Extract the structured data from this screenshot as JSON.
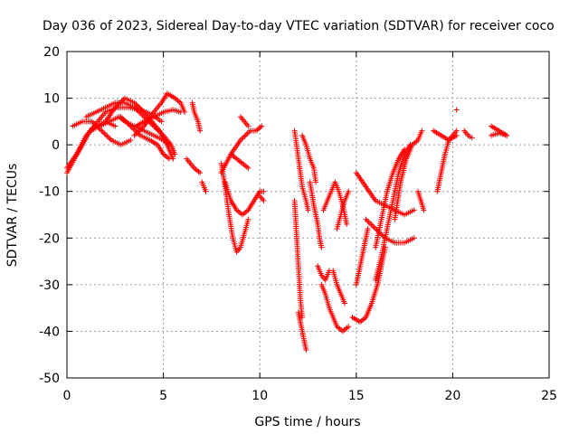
{
  "chart_data": {
    "type": "scatter",
    "title": "Day 036 of 2023, Sidereal Day-to-day VTEC variation (SDTVAR) for receiver coco",
    "xlabel": "GPS time / hours",
    "ylabel": "SDTVAR / TECUs",
    "xlim": [
      0,
      25
    ],
    "ylim": [
      -50,
      20
    ],
    "xticks": [
      0,
      5,
      10,
      15,
      20,
      25
    ],
    "yticks": [
      20,
      10,
      0,
      -10,
      -20,
      -30,
      -40,
      -50
    ],
    "grid": true,
    "marker": "+",
    "series_color": "#ff0000",
    "arcs": [
      {
        "name": "arc-1",
        "points": [
          [
            0.0,
            -5
          ],
          [
            0.5,
            -2
          ],
          [
            1.0,
            2
          ],
          [
            1.5,
            4
          ],
          [
            2.0,
            5
          ],
          [
            2.5,
            4
          ]
        ]
      },
      {
        "name": "arc-2",
        "points": [
          [
            0.0,
            -6
          ],
          [
            0.4,
            -3
          ],
          [
            0.8,
            0
          ],
          [
            1.2,
            3
          ],
          [
            1.6,
            5
          ],
          [
            2.0,
            7
          ],
          [
            2.6,
            8
          ],
          [
            3.2,
            8
          ],
          [
            3.8,
            7.5
          ],
          [
            4.4,
            6.5
          ],
          [
            4.9,
            5
          ]
        ]
      },
      {
        "name": "arc-3",
        "points": [
          [
            0.3,
            4
          ],
          [
            0.8,
            5
          ],
          [
            1.3,
            5
          ],
          [
            1.8,
            3
          ],
          [
            2.3,
            1
          ],
          [
            2.8,
            0
          ],
          [
            3.3,
            1
          ]
        ]
      },
      {
        "name": "arc-4",
        "points": [
          [
            1.0,
            6
          ],
          [
            1.5,
            7
          ],
          [
            2.0,
            8
          ],
          [
            2.5,
            9
          ],
          [
            3.0,
            9
          ],
          [
            3.5,
            8
          ],
          [
            4.0,
            6
          ],
          [
            4.5,
            4
          ],
          [
            5.0,
            2
          ],
          [
            5.4,
            0
          ],
          [
            5.6,
            -2
          ]
        ]
      },
      {
        "name": "arc-5",
        "points": [
          [
            1.2,
            3
          ],
          [
            1.7,
            4
          ],
          [
            2.2,
            5
          ],
          [
            2.7,
            6
          ],
          [
            3.0,
            5
          ],
          [
            3.5,
            4
          ],
          [
            4.0,
            3
          ],
          [
            4.5,
            2
          ],
          [
            5.0,
            1
          ],
          [
            5.3,
            0
          ]
        ]
      },
      {
        "name": "arc-6",
        "points": [
          [
            2.0,
            5
          ],
          [
            2.5,
            8
          ],
          [
            3.0,
            10
          ],
          [
            3.5,
            9
          ],
          [
            4.0,
            7
          ],
          [
            4.4,
            5
          ],
          [
            4.8,
            3
          ],
          [
            5.2,
            0
          ],
          [
            5.5,
            -3
          ]
        ]
      },
      {
        "name": "arc-7",
        "points": [
          [
            2.8,
            6
          ],
          [
            3.3,
            4
          ],
          [
            3.8,
            2
          ],
          [
            4.3,
            1
          ],
          [
            4.7,
            0
          ],
          [
            5.0,
            -2
          ],
          [
            5.3,
            -3
          ]
        ]
      },
      {
        "name": "arc-8",
        "points": [
          [
            3.5,
            2
          ],
          [
            4.0,
            4
          ],
          [
            4.5,
            7
          ],
          [
            4.9,
            9
          ],
          [
            5.2,
            11
          ],
          [
            5.6,
            10
          ],
          [
            5.9,
            9
          ],
          [
            6.1,
            7
          ]
        ]
      },
      {
        "name": "arc-9",
        "points": [
          [
            3.6,
            4
          ],
          [
            4.0,
            5
          ],
          [
            4.5,
            6
          ],
          [
            5.0,
            7
          ],
          [
            5.5,
            7.5
          ],
          [
            5.9,
            7
          ]
        ]
      },
      {
        "name": "arc-10",
        "points": [
          [
            6.2,
            -3
          ],
          [
            6.4,
            -4
          ],
          [
            6.6,
            -5
          ],
          [
            6.9,
            -6
          ]
        ]
      },
      {
        "name": "arc-11",
        "points": [
          [
            6.5,
            9
          ],
          [
            6.6,
            7
          ],
          [
            6.8,
            5
          ],
          [
            6.9,
            3
          ]
        ]
      },
      {
        "name": "arc-12",
        "points": [
          [
            7.0,
            -8
          ],
          [
            7.2,
            -10
          ]
        ]
      },
      {
        "name": "arc-13",
        "points": [
          [
            8.0,
            -4
          ],
          [
            8.2,
            -9
          ],
          [
            8.4,
            -15
          ],
          [
            8.6,
            -20
          ],
          [
            8.8,
            -23
          ],
          [
            9.0,
            -22
          ],
          [
            9.2,
            -19
          ],
          [
            9.4,
            -16
          ]
        ]
      },
      {
        "name": "arc-14",
        "points": [
          [
            8.2,
            -8
          ],
          [
            8.5,
            -12
          ],
          [
            8.8,
            -14
          ],
          [
            9.1,
            -15
          ],
          [
            9.4,
            -14
          ],
          [
            9.7,
            -12
          ],
          [
            10.0,
            -10
          ],
          [
            10.2,
            -10
          ]
        ]
      },
      {
        "name": "arc-15",
        "points": [
          [
            8.0,
            -6
          ],
          [
            8.5,
            -2
          ],
          [
            9.0,
            1
          ],
          [
            9.5,
            3
          ],
          [
            9.8,
            3
          ],
          [
            10.1,
            4
          ]
        ]
      },
      {
        "name": "arc-16",
        "points": [
          [
            8.5,
            -2
          ],
          [
            8.8,
            -3
          ],
          [
            9.1,
            -4
          ],
          [
            9.4,
            -5
          ]
        ]
      },
      {
        "name": "arc-17",
        "points": [
          [
            9.0,
            6
          ],
          [
            9.2,
            5
          ],
          [
            9.4,
            4
          ]
        ]
      },
      {
        "name": "arc-18",
        "points": [
          [
            10.0,
            -11
          ],
          [
            10.2,
            -12
          ]
        ]
      },
      {
        "name": "arc-19",
        "points": [
          [
            11.8,
            3
          ],
          [
            11.9,
            0
          ],
          [
            12.0,
            -3
          ],
          [
            12.1,
            -6
          ],
          [
            12.2,
            -9
          ],
          [
            12.4,
            -12
          ],
          [
            12.5,
            -14
          ]
        ]
      },
      {
        "name": "arc-20",
        "points": [
          [
            11.8,
            -12
          ],
          [
            12.0,
            -26
          ],
          [
            12.1,
            -33
          ],
          [
            12.2,
            -37
          ]
        ]
      },
      {
        "name": "arc-21",
        "points": [
          [
            12.0,
            -36
          ],
          [
            12.2,
            -40
          ],
          [
            12.3,
            -42
          ],
          [
            12.4,
            -44
          ]
        ]
      },
      {
        "name": "arc-22",
        "points": [
          [
            12.2,
            2
          ],
          [
            12.4,
            0
          ],
          [
            12.6,
            -3
          ],
          [
            12.8,
            -5
          ],
          [
            12.9,
            -8
          ]
        ]
      },
      {
        "name": "arc-23",
        "points": [
          [
            12.6,
            -8
          ],
          [
            12.8,
            -13
          ],
          [
            13.0,
            -17
          ],
          [
            13.1,
            -20
          ],
          [
            13.2,
            -22
          ]
        ]
      },
      {
        "name": "arc-24",
        "points": [
          [
            13.0,
            -26
          ],
          [
            13.2,
            -28
          ],
          [
            13.4,
            -29
          ],
          [
            13.6,
            -27
          ]
        ]
      },
      {
        "name": "arc-25",
        "points": [
          [
            13.2,
            -30
          ],
          [
            13.4,
            -32
          ],
          [
            13.6,
            -35
          ],
          [
            13.8,
            -37
          ],
          [
            14.0,
            -39
          ],
          [
            14.3,
            -40
          ],
          [
            14.6,
            -39
          ]
        ]
      },
      {
        "name": "arc-26",
        "points": [
          [
            13.3,
            -14
          ],
          [
            13.5,
            -12
          ],
          [
            13.7,
            -10
          ],
          [
            13.9,
            -8
          ],
          [
            14.1,
            -10
          ],
          [
            14.3,
            -13
          ],
          [
            14.5,
            -17
          ]
        ]
      },
      {
        "name": "arc-27",
        "points": [
          [
            13.8,
            -27
          ],
          [
            14.0,
            -30
          ],
          [
            14.2,
            -32
          ],
          [
            14.4,
            -34
          ]
        ]
      },
      {
        "name": "arc-28",
        "points": [
          [
            14.0,
            -18
          ],
          [
            14.2,
            -15
          ],
          [
            14.4,
            -12
          ],
          [
            14.6,
            -10
          ]
        ]
      },
      {
        "name": "arc-29",
        "points": [
          [
            14.8,
            -37
          ],
          [
            15.2,
            -38
          ],
          [
            15.5,
            -37
          ],
          [
            15.8,
            -34
          ],
          [
            16.1,
            -30
          ],
          [
            16.3,
            -26
          ],
          [
            16.5,
            -22
          ]
        ]
      },
      {
        "name": "arc-30",
        "points": [
          [
            15.0,
            -30
          ],
          [
            15.2,
            -26
          ],
          [
            15.4,
            -22
          ],
          [
            15.6,
            -18
          ]
        ]
      },
      {
        "name": "arc-31",
        "points": [
          [
            15.0,
            -6
          ],
          [
            15.5,
            -9
          ],
          [
            16.0,
            -12
          ],
          [
            16.5,
            -13
          ],
          [
            17.0,
            -14
          ],
          [
            17.5,
            -15
          ],
          [
            18.0,
            -14
          ]
        ]
      },
      {
        "name": "arc-32",
        "points": [
          [
            15.5,
            -16
          ],
          [
            16.0,
            -18
          ],
          [
            16.5,
            -20
          ],
          [
            17.0,
            -21
          ],
          [
            17.5,
            -21
          ],
          [
            18.0,
            -20
          ]
        ]
      },
      {
        "name": "arc-33",
        "points": [
          [
            16.0,
            -29
          ],
          [
            16.3,
            -24
          ],
          [
            16.6,
            -18
          ],
          [
            16.9,
            -12
          ],
          [
            17.2,
            -6
          ],
          [
            17.5,
            -2
          ],
          [
            17.8,
            0
          ]
        ]
      },
      {
        "name": "arc-34",
        "points": [
          [
            16.0,
            -22
          ],
          [
            16.3,
            -16
          ],
          [
            16.6,
            -10
          ],
          [
            16.9,
            -6
          ],
          [
            17.2,
            -3
          ],
          [
            17.5,
            -1
          ]
        ]
      },
      {
        "name": "arc-35",
        "points": [
          [
            17.0,
            -16
          ],
          [
            17.3,
            -8
          ],
          [
            17.6,
            -3
          ],
          [
            17.9,
            0
          ],
          [
            18.2,
            1
          ],
          [
            18.4,
            3
          ]
        ]
      },
      {
        "name": "arc-36",
        "points": [
          [
            18.2,
            -10
          ],
          [
            18.5,
            -14
          ]
        ]
      },
      {
        "name": "arc-37",
        "points": [
          [
            19.2,
            -10
          ],
          [
            19.4,
            -6
          ],
          [
            19.6,
            -2
          ],
          [
            19.8,
            1
          ],
          [
            20.0,
            2
          ],
          [
            20.2,
            3
          ]
        ]
      },
      {
        "name": "arc-38",
        "points": [
          [
            19.0,
            3
          ],
          [
            19.4,
            2
          ],
          [
            19.8,
            1
          ],
          [
            20.2,
            2
          ]
        ]
      },
      {
        "name": "arc-39",
        "points": [
          [
            20.6,
            3
          ],
          [
            20.8,
            2
          ],
          [
            21.0,
            1.5
          ]
        ]
      },
      {
        "name": "arc-40",
        "points": [
          [
            22.0,
            4
          ],
          [
            22.4,
            3
          ],
          [
            22.8,
            2
          ]
        ]
      },
      {
        "name": "arc-41",
        "points": [
          [
            22.0,
            2
          ],
          [
            22.4,
            2.5
          ],
          [
            22.8,
            2
          ]
        ]
      },
      {
        "name": "arc-42",
        "points": [
          [
            20.2,
            7.5
          ]
        ]
      }
    ]
  }
}
